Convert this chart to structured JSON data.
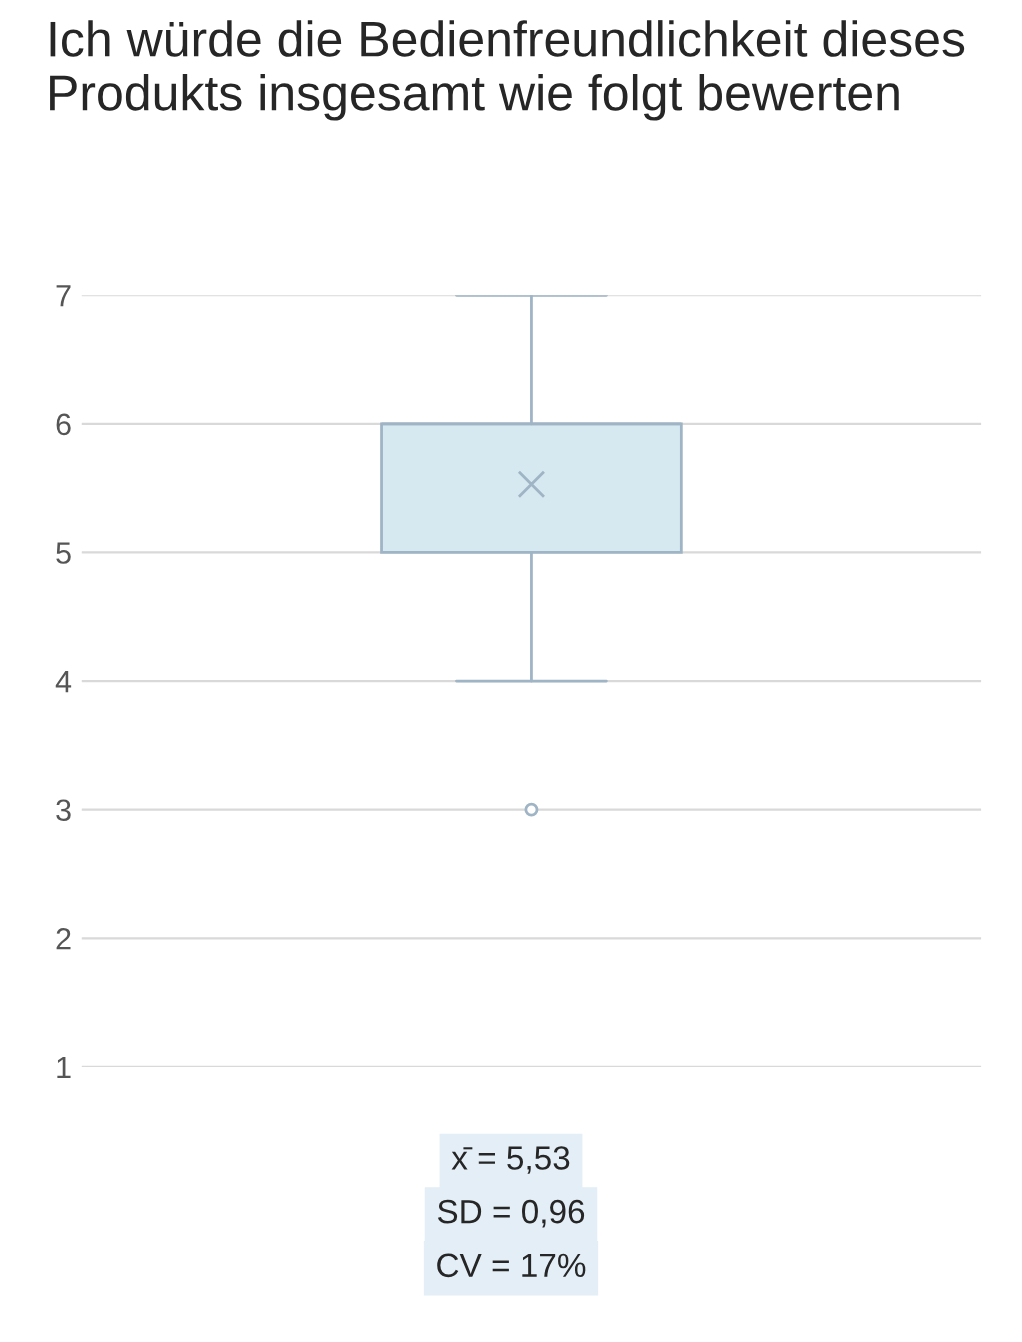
{
  "chart_data": {
    "type": "box",
    "title": "Ich würde die Bedienfreundlichkeit dieses Produkts insgesamt wie folgt bewerten",
    "categories": [
      null
    ],
    "boxes": [
      {
        "low": 4,
        "q1": 5,
        "median": 6,
        "q3": 6,
        "high": 7,
        "mean": 5.53,
        "outliers": [
          3
        ]
      }
    ],
    "color": "#d6e8f0",
    "ylim": [
      1,
      7
    ],
    "yticks": [
      1,
      2,
      3,
      4,
      5,
      6,
      7
    ],
    "grid": "y",
    "annotations": [
      "x̄ = 5,53",
      "SD = 0,96",
      "CV = 17%"
    ]
  }
}
